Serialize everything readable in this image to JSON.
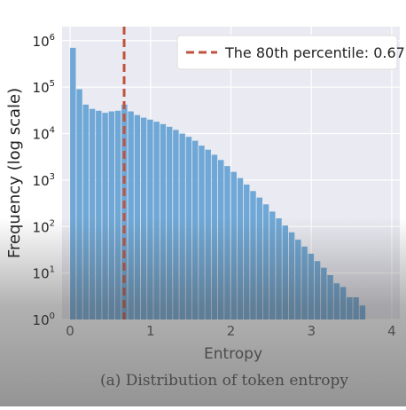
{
  "chart_data": {
    "type": "bar",
    "title": "",
    "caption": "(a) Distribution of token entropy",
    "xlabel": "Entropy",
    "ylabel": "Frequency (log scale)",
    "yscale": "log",
    "xlim": [
      -0.1,
      4.1
    ],
    "ylim": [
      1,
      2000000
    ],
    "xticks": [
      {
        "value": 0,
        "label": "0"
      },
      {
        "value": 1,
        "label": "1"
      },
      {
        "value": 2,
        "label": "2"
      },
      {
        "value": 3,
        "label": "3"
      },
      {
        "value": 4,
        "label": "4"
      }
    ],
    "yticks": [
      {
        "value": 1,
        "base": "10",
        "exp": "0"
      },
      {
        "value": 10,
        "base": "10",
        "exp": "1"
      },
      {
        "value": 100,
        "base": "10",
        "exp": "2"
      },
      {
        "value": 1000,
        "base": "10",
        "exp": "3"
      },
      {
        "value": 10000,
        "base": "10",
        "exp": "4"
      },
      {
        "value": 100000,
        "base": "10",
        "exp": "5"
      },
      {
        "value": 1000000,
        "base": "10",
        "exp": "6"
      }
    ],
    "grid": true,
    "bin_width": 0.08,
    "bin_starts": [
      0.0,
      0.08,
      0.16,
      0.24,
      0.32,
      0.4,
      0.48,
      0.56,
      0.64,
      0.72,
      0.8,
      0.88,
      0.96,
      1.04,
      1.12,
      1.2,
      1.28,
      1.36,
      1.44,
      1.52,
      1.6,
      1.68,
      1.76,
      1.84,
      1.92,
      2.0,
      2.08,
      2.16,
      2.24,
      2.32,
      2.4,
      2.48,
      2.56,
      2.64,
      2.72,
      2.8,
      2.88,
      2.96,
      3.04,
      3.12,
      3.2,
      3.28,
      3.36,
      3.44,
      3.52,
      3.6
    ],
    "values": [
      700000,
      90000,
      42000,
      34000,
      31000,
      28000,
      30000,
      31000,
      42000,
      30000,
      25000,
      22000,
      20000,
      18000,
      16000,
      14000,
      12000,
      10000,
      8500,
      7000,
      5500,
      4500,
      3500,
      2700,
      2000,
      1500,
      1100,
      800,
      580,
      420,
      300,
      210,
      150,
      105,
      75,
      52,
      37,
      26,
      18,
      13,
      9,
      6,
      5,
      3,
      3,
      2
    ],
    "color": "#6fa8d6",
    "reference_line": {
      "x": 0.672,
      "label": "The 80th percentile: 0.672",
      "color": "#c0533f",
      "style": "dashed"
    },
    "legend_position": "top-right"
  }
}
